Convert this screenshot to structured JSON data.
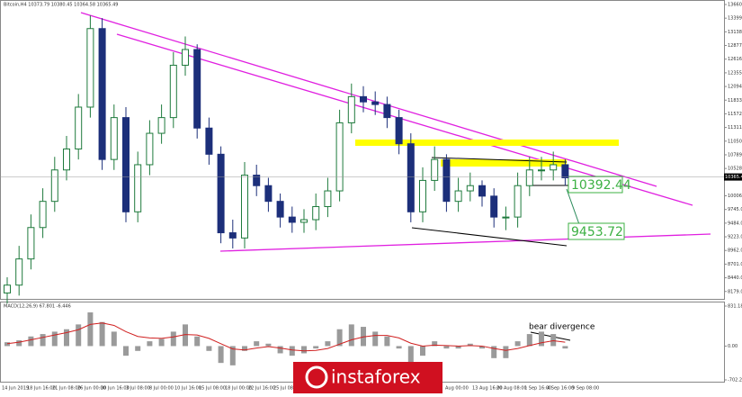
{
  "chart_data": {
    "type": "candlestick",
    "title": "Bitcoin,H4  10373.79 10380.45 10364.58 10365.49",
    "up_color": "#1e7a3c",
    "down_color": "#1c2f7a",
    "open": [
      8150,
      8300,
      8800,
      9400,
      9900,
      10500,
      10900,
      11700,
      13200,
      10700,
      11500,
      9700,
      10600,
      11200,
      11500,
      12500,
      12800,
      11300,
      10800,
      9300,
      9200,
      10400,
      10200,
      9900,
      9600,
      9500,
      9550,
      9800,
      10100,
      11400,
      11900,
      11800,
      11750,
      11500,
      11000,
      9700,
      10300,
      10700,
      9900,
      10100,
      10200,
      10000,
      9600,
      9600,
      10200,
      10500,
      10500,
      10600
    ],
    "high": [
      8450,
      9050,
      9650,
      10150,
      10750,
      11150,
      11950,
      13450,
      13400,
      11750,
      11700,
      10850,
      11450,
      11750,
      12750,
      13050,
      12900,
      11500,
      10950,
      9550,
      10650,
      10600,
      10350,
      10050,
      9800,
      9750,
      10050,
      10350,
      11650,
      12150,
      12100,
      12000,
      11900,
      11650,
      11200,
      10550,
      10950,
      10800,
      10350,
      10450,
      10300,
      10150,
      9800,
      10450,
      10750,
      10750,
      10850,
      10700
    ],
    "low": [
      7950,
      8100,
      8600,
      9200,
      9700,
      10300,
      10700,
      11500,
      10500,
      10500,
      9500,
      9500,
      10400,
      11000,
      11300,
      12300,
      11100,
      10600,
      9100,
      9000,
      9000,
      10000,
      9700,
      9400,
      9300,
      9300,
      9350,
      9600,
      9900,
      11200,
      11600,
      11550,
      11300,
      10800,
      9500,
      9500,
      10100,
      9700,
      9700,
      9900,
      9800,
      9400,
      9350,
      9400,
      10000,
      10300,
      10300,
      10200
    ],
    "close": [
      8300,
      8800,
      9400,
      9900,
      10500,
      10900,
      11700,
      13200,
      10700,
      11500,
      9700,
      10600,
      11200,
      11500,
      12500,
      12800,
      11300,
      10800,
      9300,
      9200,
      10400,
      10200,
      9900,
      9600,
      9500,
      9550,
      9800,
      10100,
      11400,
      11900,
      11800,
      11750,
      11500,
      11000,
      9700,
      10300,
      10700,
      9900,
      10100,
      10200,
      10000,
      9600,
      9600,
      10200,
      10500,
      10500,
      10600,
      10350
    ],
    "ylim": [
      8054.5,
      13660
    ],
    "yticks": [
      {
        "value": 13660,
        "label": "13660.00"
      },
      {
        "value": 13399,
        "label": "13399.00"
      },
      {
        "value": 13138,
        "label": "13138.00"
      },
      {
        "value": 12877,
        "label": "12877.00"
      },
      {
        "value": 12616,
        "label": "12616.00"
      },
      {
        "value": 12355,
        "label": "12355.00"
      },
      {
        "value": 12094,
        "label": "12094.00"
      },
      {
        "value": 11833,
        "label": "11833.00"
      },
      {
        "value": 11572,
        "label": "11572.00"
      },
      {
        "value": 11311,
        "label": "11311.00"
      },
      {
        "value": 11050,
        "label": "11050.00"
      },
      {
        "value": 10789,
        "label": "10789.00"
      },
      {
        "value": 10528,
        "label": "10528.00"
      },
      {
        "value": 10006,
        "label": "10006.00"
      },
      {
        "value": 9745,
        "label": "9745.00"
      },
      {
        "value": 9484,
        "label": "9484.00"
      },
      {
        "value": 9223,
        "label": "9223.00"
      },
      {
        "value": 8962,
        "label": "8962.00"
      },
      {
        "value": 8701,
        "label": "8701.00"
      },
      {
        "value": 8440,
        "label": "8440.00"
      },
      {
        "value": 8179,
        "label": "8179.00"
      }
    ],
    "last_price": 10365.49,
    "x_labels": [
      "14 Jun 2019",
      "18 Jun 16:00",
      "21 Jun 08:00",
      "26 Jun 00:00",
      "30 Jun 16:00",
      "3 Jul 08:00",
      "8 Jul 00:00",
      "10 Jul 16:00",
      "15 Jul 08:00",
      "18 Jul 00:00",
      "22 Jul 16:00",
      "25 Jul 08:00",
      "Aug 00:00",
      "13 Aug 16:00",
      "20 Aug 08:00",
      "1 Sep 16:00",
      "4 Sep 16:00",
      "9 Sep 08:00"
    ],
    "annotations": [
      "10392.44",
      "9453.72",
      "bear divergence"
    ],
    "indicator": {
      "title": "MACD(12,26,9) 67.801 -6.446",
      "hist_color": "#9a9a9a",
      "signal_color": "#d02020",
      "histogram": [
        80,
        120,
        200,
        250,
        300,
        350,
        450,
        700,
        500,
        300,
        -200,
        -100,
        100,
        150,
        300,
        450,
        200,
        -100,
        -350,
        -400,
        -100,
        100,
        50,
        -150,
        -200,
        -150,
        -50,
        100,
        350,
        450,
        400,
        300,
        200,
        -50,
        -400,
        -200,
        100,
        -50,
        -50,
        50,
        -50,
        -250,
        -250,
        100,
        250,
        300,
        250,
        -50
      ],
      "signal": [
        50,
        80,
        130,
        180,
        230,
        280,
        340,
        450,
        480,
        430,
        300,
        200,
        170,
        160,
        190,
        240,
        230,
        160,
        50,
        -60,
        -80,
        -40,
        -10,
        -40,
        -80,
        -100,
        -90,
        -50,
        40,
        130,
        190,
        220,
        220,
        170,
        60,
        0,
        20,
        10,
        0,
        10,
        0,
        -50,
        -90,
        -50,
        10,
        70,
        110,
        80
      ],
      "y2lim": [
        -702.27,
        831.18
      ],
      "y2ticks": [
        831.18,
        {
          "value": 0,
          "label": "0.00"
        },
        -702.27
      ]
    },
    "watermark": "instaforex"
  }
}
